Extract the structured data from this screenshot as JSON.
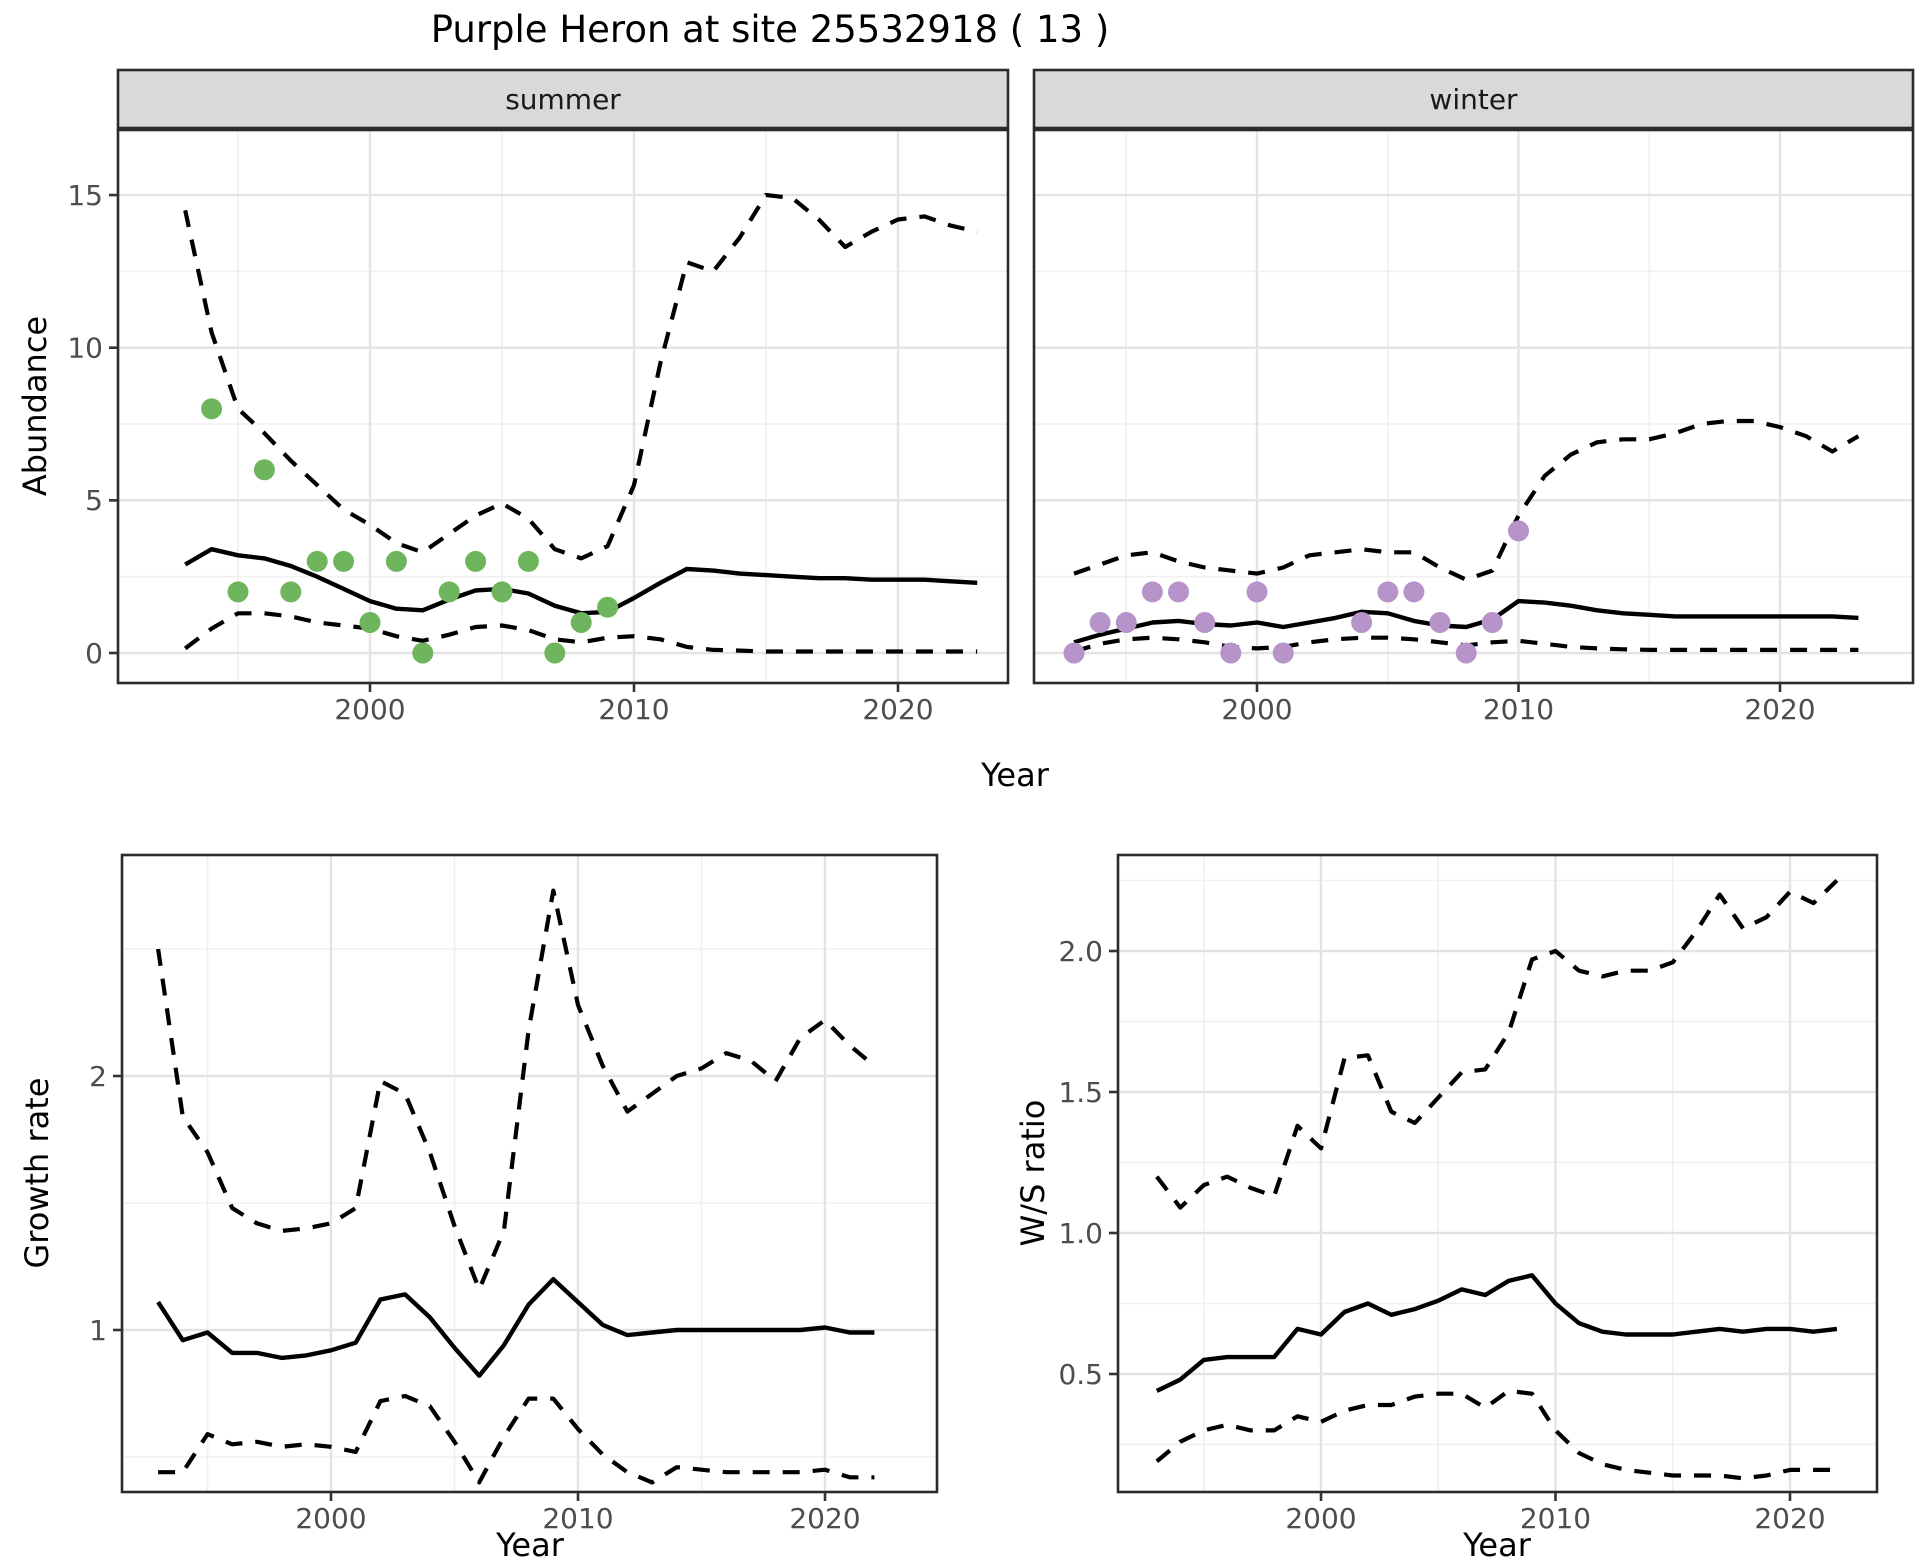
{
  "title": "Purple Heron at site 25532918 ( 13 )",
  "colors": {
    "summer_points": "#6FB55E",
    "winter_points": "#B694C9",
    "trend_line": "#000000",
    "ci_line": "#000000",
    "grid_major": "#e3e3e3",
    "grid_minor": "#f0f0f0",
    "panel_border": "#2b2b2b",
    "strip_fill": "#d9d9d9",
    "tick_text": "#4d4d4d",
    "axis_text": "#000000"
  },
  "chart_data": [
    {
      "id": "abundance-summer",
      "type": "line",
      "facet": "summer",
      "ylabel": "Abundance",
      "xlabel": "Year",
      "x_ticks": [
        {
          "v": 2000,
          "label": "2000"
        },
        {
          "v": 2010,
          "label": "2010"
        },
        {
          "v": 2020,
          "label": "2020"
        }
      ],
      "y_ticks": [
        {
          "v": 0,
          "label": "0"
        },
        {
          "v": 5,
          "label": "5"
        },
        {
          "v": 10,
          "label": "10"
        },
        {
          "v": 15,
          "label": "15"
        }
      ],
      "years": [
        1993,
        1994,
        1995,
        1996,
        1997,
        1998,
        1999,
        2000,
        2001,
        2002,
        2003,
        2004,
        2005,
        2006,
        2007,
        2008,
        2009,
        2010,
        2011,
        2012,
        2013,
        2014,
        2015,
        2016,
        2017,
        2018,
        2019,
        2020,
        2021,
        2022,
        2023
      ],
      "series": [
        {
          "name": "trend",
          "style": "solid",
          "values": [
            2.9,
            3.4,
            3.2,
            3.1,
            2.85,
            2.5,
            2.1,
            1.7,
            1.45,
            1.4,
            1.75,
            2.05,
            2.1,
            1.95,
            1.55,
            1.3,
            1.35,
            1.8,
            2.3,
            2.75,
            2.7,
            2.6,
            2.55,
            2.5,
            2.45,
            2.45,
            2.4,
            2.4,
            2.4,
            2.35,
            2.3
          ]
        },
        {
          "name": "upper_ci",
          "style": "dashed",
          "values": [
            14.5,
            10.5,
            8.0,
            7.2,
            6.3,
            5.5,
            4.7,
            4.2,
            3.6,
            3.3,
            3.9,
            4.5,
            4.9,
            4.4,
            3.4,
            3.1,
            3.5,
            5.5,
            9.5,
            12.8,
            12.5,
            13.6,
            15.0,
            14.9,
            14.2,
            13.3,
            13.8,
            14.2,
            14.3,
            14.0,
            13.8
          ]
        },
        {
          "name": "lower_ci",
          "style": "dashed",
          "values": [
            0.15,
            0.8,
            1.3,
            1.3,
            1.2,
            1.0,
            0.9,
            0.8,
            0.55,
            0.4,
            0.6,
            0.85,
            0.9,
            0.75,
            0.45,
            0.35,
            0.5,
            0.55,
            0.45,
            0.2,
            0.1,
            0.08,
            0.05,
            0.05,
            0.05,
            0.05,
            0.05,
            0.05,
            0.05,
            0.05,
            0.05
          ]
        }
      ],
      "points": {
        "name": "observed_counts_summer",
        "color_key": "summer_points",
        "years": [
          1994,
          1995,
          1996,
          1997,
          1998,
          1999,
          2000,
          2001,
          2002,
          2003,
          2004,
          2005,
          2006,
          2007,
          2008,
          2009
        ],
        "values": [
          8,
          2,
          6,
          2,
          3,
          3,
          1,
          3,
          0,
          2,
          3,
          2,
          3,
          0,
          1,
          1.5
        ]
      }
    },
    {
      "id": "abundance-winter",
      "type": "line",
      "facet": "winter",
      "ylabel": "Abundance",
      "xlabel": "Year",
      "x_ticks": [
        {
          "v": 2000,
          "label": "2000"
        },
        {
          "v": 2010,
          "label": "2010"
        },
        {
          "v": 2020,
          "label": "2020"
        }
      ],
      "y_ticks": [
        {
          "v": 0,
          "label": "0"
        },
        {
          "v": 5,
          "label": "5"
        },
        {
          "v": 10,
          "label": "10"
        },
        {
          "v": 15,
          "label": "15"
        }
      ],
      "years": [
        1993,
        1994,
        1995,
        1996,
        1997,
        1998,
        1999,
        2000,
        2001,
        2002,
        2003,
        2004,
        2005,
        2006,
        2007,
        2008,
        2009,
        2010,
        2011,
        2012,
        2013,
        2014,
        2015,
        2016,
        2017,
        2018,
        2019,
        2020,
        2021,
        2022,
        2023
      ],
      "series": [
        {
          "name": "trend",
          "style": "solid",
          "values": [
            0.35,
            0.6,
            0.8,
            1.0,
            1.05,
            0.95,
            0.9,
            1.0,
            0.85,
            1.0,
            1.15,
            1.35,
            1.3,
            1.05,
            0.9,
            0.85,
            1.1,
            1.7,
            1.65,
            1.55,
            1.4,
            1.3,
            1.25,
            1.2,
            1.2,
            1.2,
            1.2,
            1.2,
            1.2,
            1.2,
            1.15
          ]
        },
        {
          "name": "upper_ci",
          "style": "dashed",
          "values": [
            2.6,
            2.9,
            3.2,
            3.3,
            3.0,
            2.8,
            2.7,
            2.6,
            2.8,
            3.2,
            3.3,
            3.4,
            3.3,
            3.3,
            2.8,
            2.4,
            2.7,
            4.5,
            5.8,
            6.5,
            6.9,
            7.0,
            7.0,
            7.2,
            7.5,
            7.6,
            7.6,
            7.4,
            7.1,
            6.6,
            7.1
          ]
        },
        {
          "name": "lower_ci",
          "style": "dashed",
          "values": [
            0.05,
            0.3,
            0.45,
            0.5,
            0.45,
            0.35,
            0.2,
            0.15,
            0.2,
            0.35,
            0.45,
            0.5,
            0.5,
            0.45,
            0.35,
            0.25,
            0.35,
            0.4,
            0.3,
            0.2,
            0.15,
            0.12,
            0.1,
            0.1,
            0.1,
            0.1,
            0.1,
            0.1,
            0.1,
            0.1,
            0.1
          ]
        }
      ],
      "points": {
        "name": "observed_counts_winter",
        "color_key": "winter_points",
        "years": [
          1993,
          1994,
          1995,
          1996,
          1997,
          1998,
          1999,
          2000,
          2001,
          2004,
          2005,
          2006,
          2007,
          2008,
          2009,
          2010
        ],
        "values": [
          0,
          1,
          1,
          2,
          2,
          1,
          0,
          2,
          0,
          1,
          2,
          2,
          1,
          0,
          1,
          4
        ]
      }
    },
    {
      "id": "growth-rate",
      "type": "line",
      "facet": null,
      "ylabel": "Growth rate",
      "xlabel": "Year",
      "x_ticks": [
        {
          "v": 2000,
          "label": "2000"
        },
        {
          "v": 2010,
          "label": "2010"
        },
        {
          "v": 2020,
          "label": "2020"
        }
      ],
      "y_ticks": [
        {
          "v": 1,
          "label": "1"
        },
        {
          "v": 2,
          "label": "2"
        }
      ],
      "years": [
        1993,
        1994,
        1995,
        1996,
        1997,
        1998,
        1999,
        2000,
        2001,
        2002,
        2003,
        2004,
        2005,
        2006,
        2007,
        2008,
        2009,
        2010,
        2011,
        2012,
        2013,
        2014,
        2015,
        2016,
        2017,
        2018,
        2019,
        2020,
        2021,
        2022
      ],
      "series": [
        {
          "name": "trend",
          "style": "solid",
          "values": [
            1.11,
            0.96,
            0.99,
            0.91,
            0.91,
            0.89,
            0.9,
            0.92,
            0.95,
            1.12,
            1.14,
            1.05,
            0.93,
            0.82,
            0.94,
            1.1,
            1.2,
            1.11,
            1.02,
            0.98,
            0.99,
            1.0,
            1.0,
            1.0,
            1.0,
            1.0,
            1.0,
            1.01,
            0.99,
            0.99
          ]
        },
        {
          "name": "upper_ci",
          "style": "dashed",
          "values": [
            2.5,
            1.84,
            1.7,
            1.48,
            1.42,
            1.39,
            1.4,
            1.42,
            1.48,
            1.98,
            1.93,
            1.7,
            1.41,
            1.16,
            1.39,
            2.18,
            2.73,
            2.28,
            2.04,
            1.86,
            1.93,
            2.0,
            2.03,
            2.09,
            2.06,
            1.98,
            2.15,
            2.22,
            2.12,
            2.04
          ]
        },
        {
          "name": "lower_ci",
          "style": "dashed",
          "values": [
            0.44,
            0.44,
            0.59,
            0.55,
            0.56,
            0.54,
            0.55,
            0.54,
            0.52,
            0.72,
            0.74,
            0.7,
            0.56,
            0.4,
            0.58,
            0.73,
            0.73,
            0.61,
            0.51,
            0.44,
            0.4,
            0.46,
            0.45,
            0.44,
            0.44,
            0.44,
            0.44,
            0.45,
            0.42,
            0.42
          ]
        }
      ],
      "points": null
    },
    {
      "id": "ws-ratio",
      "type": "line",
      "facet": null,
      "ylabel": "W/S ratio",
      "xlabel": "Year",
      "x_ticks": [
        {
          "v": 2000,
          "label": "2000"
        },
        {
          "v": 2010,
          "label": "2010"
        },
        {
          "v": 2020,
          "label": "2020"
        }
      ],
      "y_ticks": [
        {
          "v": 0.5,
          "label": "0.5"
        },
        {
          "v": 1.0,
          "label": "1.0"
        },
        {
          "v": 1.5,
          "label": "1.5"
        },
        {
          "v": 2.0,
          "label": "2.0"
        }
      ],
      "years": [
        1993,
        1994,
        1995,
        1996,
        1997,
        1998,
        1999,
        2000,
        2001,
        2002,
        2003,
        2004,
        2005,
        2006,
        2007,
        2008,
        2009,
        2010,
        2011,
        2012,
        2013,
        2014,
        2015,
        2016,
        2017,
        2018,
        2019,
        2020,
        2021,
        2022
      ],
      "series": [
        {
          "name": "trend",
          "style": "solid",
          "values": [
            0.44,
            0.48,
            0.55,
            0.56,
            0.56,
            0.56,
            0.66,
            0.64,
            0.72,
            0.75,
            0.71,
            0.73,
            0.76,
            0.8,
            0.78,
            0.83,
            0.85,
            0.75,
            0.68,
            0.65,
            0.64,
            0.64,
            0.64,
            0.65,
            0.66,
            0.65,
            0.66,
            0.66,
            0.65,
            0.66
          ]
        },
        {
          "name": "upper_ci",
          "style": "dashed",
          "values": [
            1.2,
            1.09,
            1.17,
            1.2,
            1.16,
            1.13,
            1.38,
            1.3,
            1.62,
            1.63,
            1.43,
            1.39,
            1.48,
            1.57,
            1.58,
            1.71,
            1.97,
            2.0,
            1.93,
            1.91,
            1.93,
            1.93,
            1.96,
            2.07,
            2.2,
            2.08,
            2.12,
            2.21,
            2.17,
            2.25
          ]
        },
        {
          "name": "lower_ci",
          "style": "dashed",
          "values": [
            0.19,
            0.26,
            0.3,
            0.32,
            0.3,
            0.3,
            0.35,
            0.33,
            0.37,
            0.39,
            0.39,
            0.42,
            0.43,
            0.43,
            0.38,
            0.44,
            0.43,
            0.3,
            0.22,
            0.18,
            0.16,
            0.15,
            0.14,
            0.14,
            0.14,
            0.13,
            0.14,
            0.16,
            0.16,
            0.16
          ]
        }
      ],
      "points": null
    }
  ]
}
